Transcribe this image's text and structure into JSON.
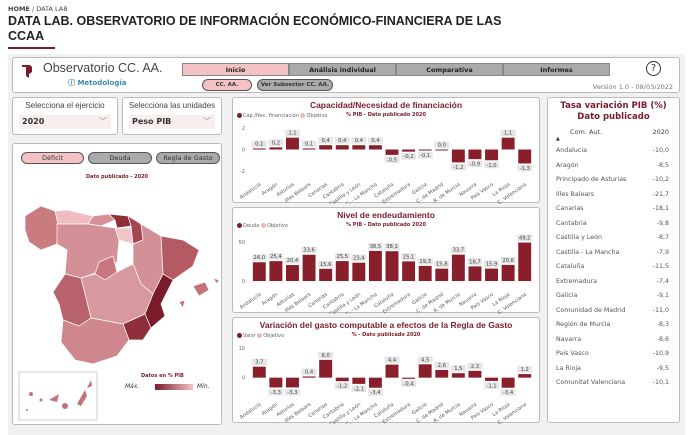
{
  "breadcrumb": {
    "home": "HOME",
    "sep": " / ",
    "current": "DATA LAB"
  },
  "page_title": "DATA LAB. OBSERVATORIO DE INFORMACIÓN ECONÓMICO-FINANCIERA DE LAS CCAA",
  "header": {
    "app_title": "Observatorio CC. AA.",
    "metodologia": "Metodología",
    "tabs": [
      {
        "label": "Inicio",
        "active": true
      },
      {
        "label": "Análisis individual"
      },
      {
        "label": "Comparativa"
      },
      {
        "label": "Informes"
      }
    ],
    "subtabs": [
      {
        "label": "CC. AA.",
        "active": true
      },
      {
        "label": "Ver Subsector CC. AA."
      }
    ],
    "help": "?",
    "version": "Versión 1.0  -  08/03/2022"
  },
  "selectors": {
    "ejercicio": {
      "label": "Selecciona el ejercicio",
      "value": "2020"
    },
    "unidades": {
      "label": "Selecciona las unidades",
      "value": "Peso PIB"
    }
  },
  "map": {
    "buttons": [
      "Déficit",
      "Deuda",
      "Regla de Gasto"
    ],
    "active": "Déficit",
    "subtitle": "Dato publicado - 2020",
    "legend_title": "Datos en % PIB",
    "max": "Máx.",
    "min": "Mín.",
    "colors": {
      "max": "#7a1c2a",
      "min": "#f2c4c6"
    }
  },
  "accent": "#7a1c2a",
  "chart_data": [
    {
      "type": "bar",
      "title": "Capacidad/Necesidad de financiación",
      "subtitle": "% PIB - Dato publicado 2020",
      "legend": [
        "Cap./Nec. financiación",
        "Objetivo"
      ],
      "yticks": [
        2,
        0,
        -2
      ],
      "ylim": [
        -2,
        2
      ],
      "categories": [
        "Andalucía",
        "Aragón",
        "Asturias",
        "Illes Balears",
        "Canarias",
        "Cantabria",
        "Castilla y León",
        "C. - La Mancha",
        "Cataluña",
        "Extremadura",
        "Galicia",
        "C. de Madrid",
        "R. de Murcia",
        "Navarra",
        "País Vasco",
        "La Rioja",
        "C. Valenciana"
      ],
      "values": [
        0.1,
        0.2,
        1.1,
        0.1,
        0.4,
        0.4,
        0.4,
        0.4,
        -0.5,
        -0.2,
        -0.1,
        0.0,
        -1.2,
        -0.9,
        -1.0,
        1.1,
        -1.3
      ]
    },
    {
      "type": "bar",
      "title": "Nivel de endeudamiento",
      "subtitle": "% PIB - Dato publicado 2020",
      "legend": [
        "Deuda",
        "Objetivo"
      ],
      "yticks": [
        50,
        0
      ],
      "ylim": [
        0,
        55
      ],
      "categories": [
        "Andalucía",
        "Aragón",
        "Asturias",
        "Illes Balears",
        "Canarias",
        "Cantabria",
        "Castilla y León",
        "C. - La Mancha",
        "Cataluña",
        "Extremadura",
        "Galicia",
        "C. de Madrid",
        "R. de Murcia",
        "Navarra",
        "País Vasco",
        "La Rioja",
        "C. Valenciana"
      ],
      "values": [
        24.0,
        25.4,
        20.4,
        33.6,
        15.6,
        25.5,
        23.4,
        38.5,
        38.1,
        25.1,
        19.3,
        15.8,
        33.7,
        18.7,
        15.9,
        20.6,
        49.2
      ]
    },
    {
      "type": "bar",
      "title": "Variación del gasto computable a efectos de la Regla de Gasto",
      "subtitle": "% - Dato publicado 2020",
      "legend": [
        "Valor",
        "Objetivo"
      ],
      "yticks": [
        10,
        0
      ],
      "ylim": [
        -4.5,
        10
      ],
      "categories": [
        "Andalucía",
        "Aragón",
        "Asturias",
        "Illes Balears",
        "Canarias",
        "Cantabria",
        "Castilla y León",
        "C. - La Mancha",
        "Cataluña",
        "Extremadura",
        "Galicia",
        "C. de Madrid",
        "R. de Murcia",
        "Navarra",
        "País Vasco",
        "La Rioja",
        "C. Valenciana"
      ],
      "values": [
        3.7,
        -3.3,
        -3.3,
        0.4,
        6.0,
        -1.2,
        -2.1,
        -3.4,
        4.4,
        -0.4,
        4.5,
        2.6,
        1.5,
        2.3,
        -1.1,
        -3.4,
        1.2
      ]
    }
  ],
  "table": {
    "title": "Tasa variación PIB (%) Dato publicado",
    "columns": [
      "Com. Aut.",
      "2020"
    ],
    "rows": [
      [
        "Andalucía",
        "-10,0"
      ],
      [
        "Aragón",
        "-8,5"
      ],
      [
        "Principado de Asturias",
        "-10,2"
      ],
      [
        "Illes Balears",
        "-21,7"
      ],
      [
        "Canarias",
        "-18,1"
      ],
      [
        "Cantabria",
        "-9,8"
      ],
      [
        "Castilla y León",
        "-8,7"
      ],
      [
        "Castilla - La Mancha",
        "-7,9"
      ],
      [
        "Cataluña",
        "-11,5"
      ],
      [
        "Extremadura",
        "-7,4"
      ],
      [
        "Galicia",
        "-9,1"
      ],
      [
        "Comunidad de Madrid",
        "-11,0"
      ],
      [
        "Región de Murcia",
        "-8,3"
      ],
      [
        "Navarra",
        "-8,6"
      ],
      [
        "País Vasco",
        "-10,9"
      ],
      [
        "La Rioja",
        "-9,5"
      ],
      [
        "Comunitat Valenciana",
        "-10,1"
      ]
    ]
  }
}
